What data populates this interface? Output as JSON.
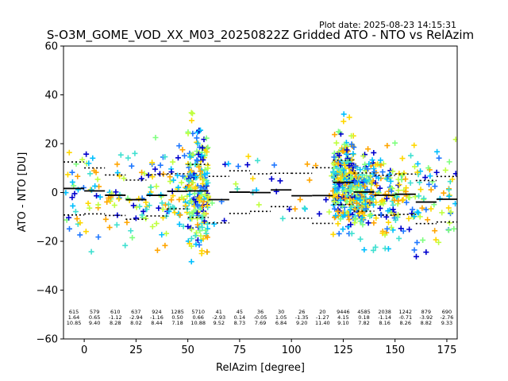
{
  "chart_data": {
    "type": "scatter",
    "title": "S-O3M_GOME_VOD_XX_M03_20250822Z Gridded ATO - NTO vs RelAzim",
    "plot_date": "Plot date: 2025-08-23 14:15:31",
    "xlabel": "RelAzim [degree]",
    "ylabel": "ATO - NTO [DU]",
    "xlim": [
      -10,
      180
    ],
    "ylim": [
      -60,
      60
    ],
    "xticks": [
      0,
      25,
      50,
      75,
      100,
      125,
      150,
      175
    ],
    "yticks": [
      -60,
      -40,
      -20,
      0,
      20,
      40,
      60
    ],
    "grid": false,
    "point_colors": [
      "#0000cd",
      "#1f77ff",
      "#00bfff",
      "#40e0d0",
      "#7fff7f",
      "#c0ff40",
      "#ffd700",
      "#ffa500"
    ],
    "bins": [
      {
        "x": -5,
        "count": 615,
        "mean": 1.64,
        "std": 10.85
      },
      {
        "x": 5,
        "count": 579,
        "mean": 0.65,
        "std": 9.4
      },
      {
        "x": 15,
        "count": 610,
        "mean": -1.12,
        "std": 8.28
      },
      {
        "x": 25,
        "count": 637,
        "mean": -2.94,
        "std": 8.02
      },
      {
        "x": 35,
        "count": 924,
        "mean": -1.16,
        "std": 8.44
      },
      {
        "x": 45,
        "count": 1285,
        "mean": 0.5,
        "std": 7.18
      },
      {
        "x": 55,
        "count": 5710,
        "mean": 0.66,
        "std": 10.88
      },
      {
        "x": 65,
        "count": 41,
        "mean": -2.93,
        "std": 9.52
      },
      {
        "x": 75,
        "count": 45,
        "mean": 0.14,
        "std": 8.73
      },
      {
        "x": 85,
        "count": 36,
        "mean": -0.05,
        "std": 7.69
      },
      {
        "x": 95,
        "count": 30,
        "mean": 1.05,
        "std": 6.84
      },
      {
        "x": 105,
        "count": 26,
        "mean": -1.35,
        "std": 9.2
      },
      {
        "x": 115,
        "count": 20,
        "mean": -1.27,
        "std": 11.4
      },
      {
        "x": 125,
        "count": 9446,
        "mean": 4.15,
        "std": 9.1
      },
      {
        "x": 135,
        "count": 4585,
        "mean": 0.18,
        "std": 7.82
      },
      {
        "x": 145,
        "count": 2038,
        "mean": -1.14,
        "std": 8.16
      },
      {
        "x": 155,
        "count": 1242,
        "mean": -0.71,
        "std": 8.26
      },
      {
        "x": 165,
        "count": 879,
        "mean": -3.92,
        "std": 8.82
      },
      {
        "x": 175,
        "count": 690,
        "mean": -2.76,
        "std": 9.33
      }
    ]
  }
}
